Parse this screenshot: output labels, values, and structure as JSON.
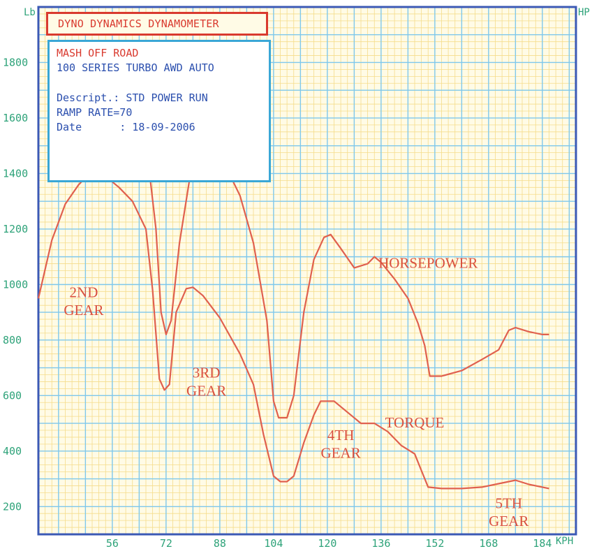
{
  "header": {
    "title": "DYNO DYNAMICS DYNAMOMETER"
  },
  "info": {
    "line1": "MASH OFF ROAD",
    "line2": "100 SERIES TURBO AWD AUTO",
    "descript": "Descript.: STD POWER RUN",
    "ramp": "RAMP RATE=70",
    "date": "Date      : 18-09-2006"
  },
  "axes": {
    "left_unit": "Lb",
    "right_unit": "HP",
    "x_unit": "KPH"
  },
  "colors": {
    "grid_major": "#7ec8ec",
    "grid_minor": "#f5dc8a",
    "background": "#fffbe6",
    "frame": "#3b59b5",
    "curve": "#e0604e",
    "tick": "#2fa37a",
    "annotation": "#d9503f"
  },
  "chart_data": {
    "type": "line",
    "title": "DYNO DYNAMICS DYNAMOMETER",
    "xlabel": "KPH",
    "ylabel": "Lb",
    "y2label": "HP",
    "xlim": [
      34,
      194
    ],
    "ylim": [
      100,
      2000
    ],
    "x_ticks": [
      56,
      72,
      88,
      104,
      120,
      136,
      152,
      168,
      184
    ],
    "y_ticks": [
      200,
      400,
      600,
      800,
      1000,
      1200,
      1400,
      1600,
      1800
    ],
    "grid": true,
    "series": [
      {
        "name": "HORSEPOWER",
        "points": [
          [
            46.5,
            1500
          ],
          [
            50,
            1650
          ],
          [
            54,
            1770
          ],
          [
            59,
            1800
          ],
          [
            64,
            1650
          ],
          [
            67,
            1410
          ],
          [
            69,
            1200
          ],
          [
            70.5,
            900
          ],
          [
            72,
            820
          ],
          [
            73.5,
            870
          ],
          [
            76,
            1150
          ],
          [
            79,
            1380
          ],
          [
            82,
            1540
          ],
          [
            86,
            1530
          ],
          [
            90,
            1420
          ],
          [
            94,
            1320
          ],
          [
            98,
            1150
          ],
          [
            102,
            870
          ],
          [
            104,
            580
          ],
          [
            105.5,
            520
          ],
          [
            108,
            520
          ],
          [
            110,
            600
          ],
          [
            113,
            900
          ],
          [
            116,
            1090
          ],
          [
            119,
            1170
          ],
          [
            121,
            1180
          ],
          [
            124,
            1130
          ],
          [
            128,
            1060
          ],
          [
            132,
            1075
          ],
          [
            134,
            1100
          ],
          [
            136,
            1080
          ],
          [
            140,
            1020
          ],
          [
            144,
            950
          ],
          [
            147,
            860
          ],
          [
            149,
            780
          ],
          [
            150.5,
            670
          ],
          [
            154,
            670
          ],
          [
            160,
            690
          ],
          [
            166,
            730
          ],
          [
            171,
            765
          ],
          [
            174,
            835
          ],
          [
            176,
            845
          ],
          [
            180,
            830
          ],
          [
            184,
            820
          ],
          [
            186,
            820
          ]
        ]
      },
      {
        "name": "TORQUE",
        "points": [
          [
            34,
            950
          ],
          [
            38,
            1160
          ],
          [
            42,
            1290
          ],
          [
            46,
            1360
          ],
          [
            50,
            1410
          ],
          [
            54,
            1390
          ],
          [
            58,
            1350
          ],
          [
            62,
            1300
          ],
          [
            66,
            1200
          ],
          [
            68,
            980
          ],
          [
            70,
            660
          ],
          [
            71.5,
            620
          ],
          [
            73,
            640
          ],
          [
            75,
            900
          ],
          [
            78,
            985
          ],
          [
            80,
            990
          ],
          [
            83,
            960
          ],
          [
            88,
            880
          ],
          [
            94,
            750
          ],
          [
            98,
            640
          ],
          [
            101,
            460
          ],
          [
            104,
            310
          ],
          [
            106,
            290
          ],
          [
            108,
            290
          ],
          [
            110,
            310
          ],
          [
            113,
            430
          ],
          [
            116,
            530
          ],
          [
            118,
            580
          ],
          [
            122,
            580
          ],
          [
            126,
            540
          ],
          [
            130,
            500
          ],
          [
            134,
            500
          ],
          [
            138,
            470
          ],
          [
            142,
            420
          ],
          [
            146,
            390
          ],
          [
            148,
            330
          ],
          [
            150,
            270
          ],
          [
            154,
            265
          ],
          [
            160,
            265
          ],
          [
            166,
            270
          ],
          [
            172,
            285
          ],
          [
            176,
            295
          ],
          [
            180,
            280
          ],
          [
            186,
            265
          ]
        ]
      }
    ],
    "annotations": [
      {
        "text": "HORSEPOWER",
        "x": 150,
        "y": 1060
      },
      {
        "text": "TORQUE",
        "x": 146,
        "y": 485
      },
      {
        "text": "2ND",
        "x": 47.5,
        "y": 955
      },
      {
        "text": "GEAR",
        "x": 47.5,
        "y": 890
      },
      {
        "text": "3RD",
        "x": 84,
        "y": 665
      },
      {
        "text": "GEAR",
        "x": 84,
        "y": 600
      },
      {
        "text": "4TH",
        "x": 124,
        "y": 440
      },
      {
        "text": "GEAR",
        "x": 124,
        "y": 375
      },
      {
        "text": "5TH",
        "x": 174,
        "y": 195
      },
      {
        "text": "GEAR",
        "x": 174,
        "y": 130
      }
    ]
  }
}
